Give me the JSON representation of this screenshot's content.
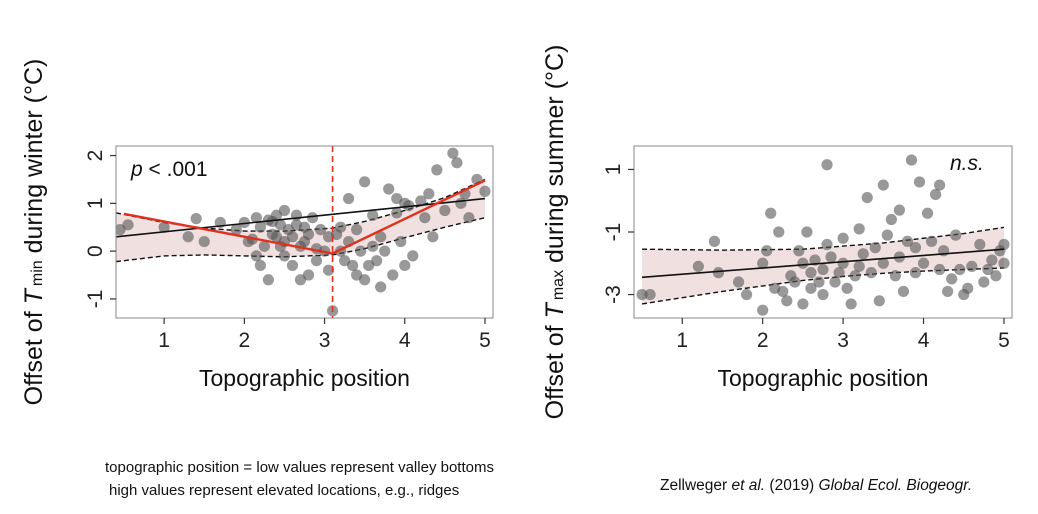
{
  "chart_data": [
    {
      "type": "scatter",
      "xlabel": "Topographic position",
      "ylabel_prefix": "Offset of ",
      "ylabel_var": "T",
      "ylabel_sub": "min",
      "ylabel_suffix": " during winter (°C)",
      "annotation": "p < .001",
      "xlim": [
        0.4,
        5.1
      ],
      "ylim": [
        -1.4,
        2.2
      ],
      "xticks": [
        1,
        2,
        3,
        4,
        5
      ],
      "yticks": [
        -1,
        0,
        1,
        2
      ],
      "breakpoint_x": 3.1,
      "fit_line": {
        "x": [
          0.4,
          5.0
        ],
        "y": [
          0.3,
          1.1
        ]
      },
      "ci_upper": [
        [
          0.4,
          0.8
        ],
        [
          1.0,
          0.6
        ],
        [
          1.5,
          0.48
        ],
        [
          2.0,
          0.42
        ],
        [
          2.5,
          0.42
        ],
        [
          3.1,
          0.48
        ],
        [
          3.5,
          0.62
        ],
        [
          4.0,
          0.85
        ],
        [
          4.5,
          1.12
        ],
        [
          5.0,
          1.5
        ]
      ],
      "ci_lower": [
        [
          0.4,
          -0.22
        ],
        [
          1.0,
          -0.1
        ],
        [
          1.5,
          -0.08
        ],
        [
          2.0,
          -0.1
        ],
        [
          2.5,
          -0.12
        ],
        [
          3.1,
          -0.08
        ],
        [
          3.5,
          0.05
        ],
        [
          4.0,
          0.28
        ],
        [
          4.5,
          0.5
        ],
        [
          5.0,
          0.7
        ]
      ],
      "segmented_fit": {
        "x": [
          0.5,
          3.1,
          5.0
        ],
        "y": [
          0.78,
          -0.05,
          1.48
        ]
      },
      "points": [
        [
          0.45,
          0.45
        ],
        [
          0.55,
          0.55
        ],
        [
          1.0,
          0.5
        ],
        [
          1.3,
          0.3
        ],
        [
          1.4,
          0.68
        ],
        [
          1.5,
          0.2
        ],
        [
          1.7,
          0.6
        ],
        [
          1.9,
          0.45
        ],
        [
          2.0,
          0.6
        ],
        [
          2.05,
          0.2
        ],
        [
          2.1,
          0.25
        ],
        [
          2.15,
          -0.1
        ],
        [
          2.15,
          0.7
        ],
        [
          2.2,
          -0.3
        ],
        [
          2.2,
          0.5
        ],
        [
          2.25,
          0.1
        ],
        [
          2.3,
          0.65
        ],
        [
          2.3,
          -0.6
        ],
        [
          2.35,
          0.35
        ],
        [
          2.35,
          0.62
        ],
        [
          2.4,
          0.3
        ],
        [
          2.4,
          0.75
        ],
        [
          2.45,
          0.1
        ],
        [
          2.45,
          0.55
        ],
        [
          2.5,
          -0.1
        ],
        [
          2.5,
          0.2
        ],
        [
          2.5,
          0.85
        ],
        [
          2.55,
          0.45
        ],
        [
          2.6,
          0.3
        ],
        [
          2.6,
          -0.3
        ],
        [
          2.65,
          0.55
        ],
        [
          2.65,
          0.75
        ],
        [
          2.7,
          0.1
        ],
        [
          2.7,
          -0.6
        ],
        [
          2.75,
          0.2
        ],
        [
          2.75,
          0.5
        ],
        [
          2.8,
          -0.5
        ],
        [
          2.8,
          0.35
        ],
        [
          2.85,
          0.7
        ],
        [
          2.9,
          0.05
        ],
        [
          2.9,
          -0.2
        ],
        [
          2.95,
          0.45
        ],
        [
          3.0,
          0.0
        ],
        [
          3.05,
          -0.4
        ],
        [
          3.05,
          0.3
        ],
        [
          3.1,
          -1.25
        ],
        [
          3.15,
          0.35
        ],
        [
          3.2,
          0.0
        ],
        [
          3.2,
          0.5
        ],
        [
          3.25,
          -0.2
        ],
        [
          3.3,
          0.2
        ],
        [
          3.3,
          1.1
        ],
        [
          3.35,
          -0.3
        ],
        [
          3.4,
          0.45
        ],
        [
          3.4,
          -0.5
        ],
        [
          3.45,
          0.0
        ],
        [
          3.5,
          -0.6
        ],
        [
          3.5,
          1.45
        ],
        [
          3.55,
          -0.3
        ],
        [
          3.6,
          0.1
        ],
        [
          3.6,
          0.75
        ],
        [
          3.65,
          -0.2
        ],
        [
          3.7,
          0.3
        ],
        [
          3.7,
          -0.75
        ],
        [
          3.75,
          0.0
        ],
        [
          3.8,
          1.3
        ],
        [
          3.85,
          -0.5
        ],
        [
          3.9,
          0.8
        ],
        [
          3.9,
          1.1
        ],
        [
          3.95,
          0.2
        ],
        [
          4.0,
          1.0
        ],
        [
          4.0,
          -0.3
        ],
        [
          4.05,
          0.95
        ],
        [
          4.1,
          -0.1
        ],
        [
          4.2,
          1.05
        ],
        [
          4.25,
          0.7
        ],
        [
          4.3,
          1.2
        ],
        [
          4.35,
          0.3
        ],
        [
          4.4,
          1.7
        ],
        [
          4.5,
          0.85
        ],
        [
          4.6,
          2.05
        ],
        [
          4.65,
          1.85
        ],
        [
          4.7,
          1.0
        ],
        [
          4.75,
          1.2
        ],
        [
          4.8,
          0.7
        ],
        [
          4.9,
          1.5
        ],
        [
          5.0,
          1.25
        ]
      ]
    },
    {
      "type": "scatter",
      "xlabel": "Topographic position",
      "ylabel_prefix": "Offset of ",
      "ylabel_var": "T",
      "ylabel_sub": "max",
      "ylabel_suffix": " during summer (°C)",
      "annotation": "n.s.",
      "xlim": [
        0.4,
        5.1
      ],
      "ylim": [
        -3.75,
        1.75
      ],
      "xticks": [
        1,
        2,
        3,
        4,
        5
      ],
      "yticks": [
        -3,
        -1,
        1
      ],
      "fit_line": {
        "x": [
          0.5,
          5.0
        ],
        "y": [
          -2.45,
          -1.55
        ]
      },
      "ci_upper": [
        [
          0.5,
          -1.55
        ],
        [
          1.5,
          -1.58
        ],
        [
          2.5,
          -1.55
        ],
        [
          3.0,
          -1.45
        ],
        [
          3.5,
          -1.35
        ],
        [
          4.0,
          -1.2
        ],
        [
          4.5,
          -1.05
        ],
        [
          5.0,
          -0.85
        ]
      ],
      "ci_lower": [
        [
          0.5,
          -3.3
        ],
        [
          1.5,
          -2.9
        ],
        [
          2.5,
          -2.55
        ],
        [
          3.0,
          -2.42
        ],
        [
          3.5,
          -2.32
        ],
        [
          4.0,
          -2.25
        ],
        [
          4.5,
          -2.2
        ],
        [
          5.0,
          -2.15
        ]
      ],
      "points": [
        [
          0.5,
          -3.0
        ],
        [
          0.6,
          -3.0
        ],
        [
          1.2,
          -2.1
        ],
        [
          1.4,
          -1.3
        ],
        [
          1.45,
          -2.3
        ],
        [
          1.7,
          -2.6
        ],
        [
          1.8,
          -3.0
        ],
        [
          2.0,
          -2.0
        ],
        [
          2.0,
          -3.5
        ],
        [
          2.05,
          -1.6
        ],
        [
          2.1,
          -0.4
        ],
        [
          2.15,
          -2.8
        ],
        [
          2.2,
          -1.0
        ],
        [
          2.25,
          -2.9
        ],
        [
          2.3,
          -3.2
        ],
        [
          2.35,
          -2.4
        ],
        [
          2.4,
          -2.6
        ],
        [
          2.45,
          -1.6
        ],
        [
          2.5,
          -3.3
        ],
        [
          2.5,
          -2.0
        ],
        [
          2.55,
          -1.0
        ],
        [
          2.6,
          -2.8
        ],
        [
          2.6,
          -2.3
        ],
        [
          2.65,
          -1.9
        ],
        [
          2.7,
          -2.6
        ],
        [
          2.75,
          -2.2
        ],
        [
          2.75,
          -3.0
        ],
        [
          2.8,
          1.15
        ],
        [
          2.8,
          -1.4
        ],
        [
          2.85,
          -1.8
        ],
        [
          2.9,
          -2.6
        ],
        [
          2.95,
          -2.3
        ],
        [
          3.0,
          -1.2
        ],
        [
          3.0,
          -2.0
        ],
        [
          3.05,
          -2.8
        ],
        [
          3.1,
          -3.3
        ],
        [
          3.15,
          -2.4
        ],
        [
          3.2,
          -0.9
        ],
        [
          3.2,
          -2.1
        ],
        [
          3.25,
          -1.7
        ],
        [
          3.3,
          0.1
        ],
        [
          3.35,
          -2.3
        ],
        [
          3.4,
          -1.5
        ],
        [
          3.45,
          -3.2
        ],
        [
          3.5,
          -2.0
        ],
        [
          3.5,
          0.5
        ],
        [
          3.55,
          -1.1
        ],
        [
          3.6,
          -0.6
        ],
        [
          3.65,
          -2.4
        ],
        [
          3.7,
          -1.8
        ],
        [
          3.7,
          -0.3
        ],
        [
          3.75,
          -2.9
        ],
        [
          3.8,
          -1.3
        ],
        [
          3.85,
          1.3
        ],
        [
          3.9,
          -2.3
        ],
        [
          3.9,
          -1.5
        ],
        [
          3.95,
          0.6
        ],
        [
          4.0,
          -2.0
        ],
        [
          4.05,
          -0.4
        ],
        [
          4.1,
          -1.3
        ],
        [
          4.15,
          0.2
        ],
        [
          4.2,
          0.5
        ],
        [
          4.2,
          -2.2
        ],
        [
          4.25,
          -1.6
        ],
        [
          4.3,
          -2.9
        ],
        [
          4.35,
          -2.5
        ],
        [
          4.4,
          -1.1
        ],
        [
          4.45,
          -2.2
        ],
        [
          4.5,
          -3.0
        ],
        [
          4.55,
          -2.8
        ],
        [
          4.6,
          -2.1
        ],
        [
          4.7,
          -1.4
        ],
        [
          4.75,
          -2.6
        ],
        [
          4.8,
          -2.2
        ],
        [
          4.85,
          -1.9
        ],
        [
          4.9,
          -2.4
        ],
        [
          4.95,
          -1.6
        ],
        [
          5.0,
          -1.4
        ],
        [
          5.0,
          -2.0
        ]
      ]
    }
  ],
  "caption": {
    "line1": "topographic position = low values represent valley bottoms",
    "line2": "high values represent elevated locations, e.g., ridges"
  },
  "credit": {
    "author": "Zellweger ",
    "etal": "et al.",
    "year": " (2019) ",
    "journal": "Global Ecol. Biogeogr."
  },
  "colors": {
    "points": "#555555",
    "ci_fill": "#f0e0e0",
    "fit_line": "#111111",
    "segmented_fit": "#e0301e",
    "breakpoint": "#e0301e"
  }
}
